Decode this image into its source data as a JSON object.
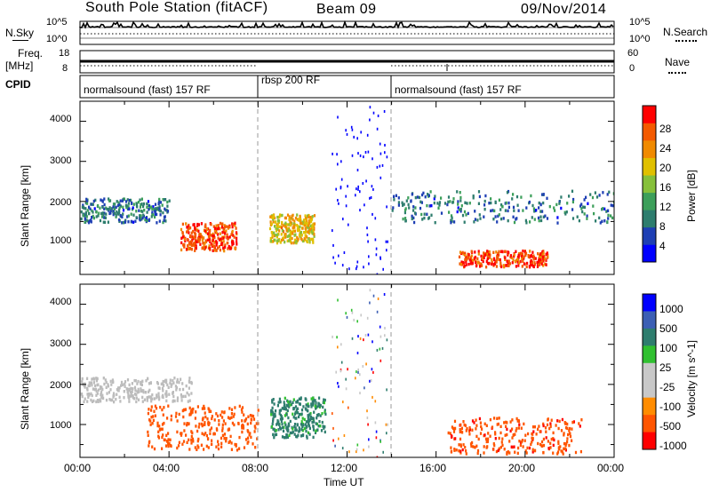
{
  "header": {
    "title": "South Pole Station (fitACF)",
    "beam": "Beam 09",
    "date": "09/Nov/2014"
  },
  "top_panels": {
    "nsky_label": "N.Sky",
    "nsky_ticks": [
      "10^5",
      "10^0"
    ],
    "nsearch_label": "N.Search",
    "nsearch_ticks": [
      "10^5",
      "10^0"
    ],
    "freq_label_1": "Freq.",
    "freq_label_2": "[MHz]",
    "freq_ticks": [
      "18",
      "8"
    ],
    "nave_label": "Nave",
    "nave_ticks": [
      "60",
      "0"
    ],
    "cpid_label": "CPID",
    "cpid_segments": [
      {
        "label": "normalsound (fast) 157 RF",
        "start": 0,
        "end": 8
      },
      {
        "label": "rbsp 200 RF",
        "start": 8,
        "end": 14
      },
      {
        "label": "normalsound (fast) 157 RF",
        "start": 14,
        "end": 24
      }
    ]
  },
  "colors": {
    "power_scale": [
      "#0000ff",
      "#1e3fb4",
      "#2e7d6e",
      "#3c9f5a",
      "#86c03a",
      "#e0c000",
      "#f08a00",
      "#f45a00",
      "#ff0000"
    ],
    "velocity_scale": [
      "#ff0000",
      "#ff5500",
      "#ff8c00",
      "#c8c8c8",
      "#c8c8c8",
      "#30c030",
      "#2e7d6e",
      "#3c5fb4",
      "#0000ff"
    ],
    "ground_scatter": "#bcbcbc"
  },
  "chart_data": [
    {
      "type": "heatmap",
      "title": "",
      "xlabel": "",
      "ylabel": "Slant Range [km]",
      "xlim": [
        "00:00",
        "24:00"
      ],
      "ylim": [
        180,
        4500
      ],
      "x_ticks": [
        "00:00",
        "04:00",
        "08:00",
        "12:00",
        "16:00",
        "20:00",
        "00:00"
      ],
      "y_ticks": [
        "1000",
        "2000",
        "3000",
        "4000"
      ],
      "colorbar": {
        "label": "Power [dB]",
        "range": [
          0,
          32
        ],
        "ticks": [
          "4",
          "8",
          "12",
          "16",
          "20",
          "24",
          "28"
        ]
      },
      "features": [
        {
          "hours": [
            0,
            4
          ],
          "range_km": [
            1500,
            2100
          ],
          "power_db": 8
        },
        {
          "hours": [
            4.5,
            7
          ],
          "range_km": [
            800,
            1500
          ],
          "power_db": 28
        },
        {
          "hours": [
            8.5,
            10.5
          ],
          "range_km": [
            1000,
            1700
          ],
          "power_db": 20
        },
        {
          "hours": [
            17,
            21
          ],
          "range_km": [
            400,
            800
          ],
          "power_db": 28
        },
        {
          "hours": [
            14,
            24
          ],
          "range_km": [
            1500,
            2300
          ],
          "power_db": 8
        }
      ]
    },
    {
      "type": "heatmap",
      "title": "",
      "xlabel": "Time UT",
      "ylabel": "Slant Range [km]",
      "xlim": [
        "00:00",
        "24:00"
      ],
      "ylim": [
        180,
        4500
      ],
      "x_ticks": [
        "00:00",
        "04:00",
        "08:00",
        "12:00",
        "16:00",
        "20:00",
        "00:00"
      ],
      "y_ticks": [
        "1000",
        "2000",
        "3000",
        "4000"
      ],
      "colorbar": {
        "label": "Velocity [m s^-1]",
        "range": [
          -1000,
          1000
        ],
        "ticks": [
          "1000",
          "500",
          "100",
          "25",
          "-25",
          "-100",
          "-500",
          "-1000"
        ]
      },
      "features": [
        {
          "hours": [
            0,
            5
          ],
          "range_km": [
            1600,
            2200
          ],
          "velocity": 0
        },
        {
          "hours": [
            3,
            8
          ],
          "range_km": [
            400,
            1500
          ],
          "velocity": -300
        },
        {
          "hours": [
            8.5,
            11
          ],
          "range_km": [
            700,
            1700
          ],
          "velocity": 200
        },
        {
          "hours": [
            16.5,
            22.5
          ],
          "range_km": [
            300,
            1200
          ],
          "velocity": -400
        }
      ]
    }
  ]
}
